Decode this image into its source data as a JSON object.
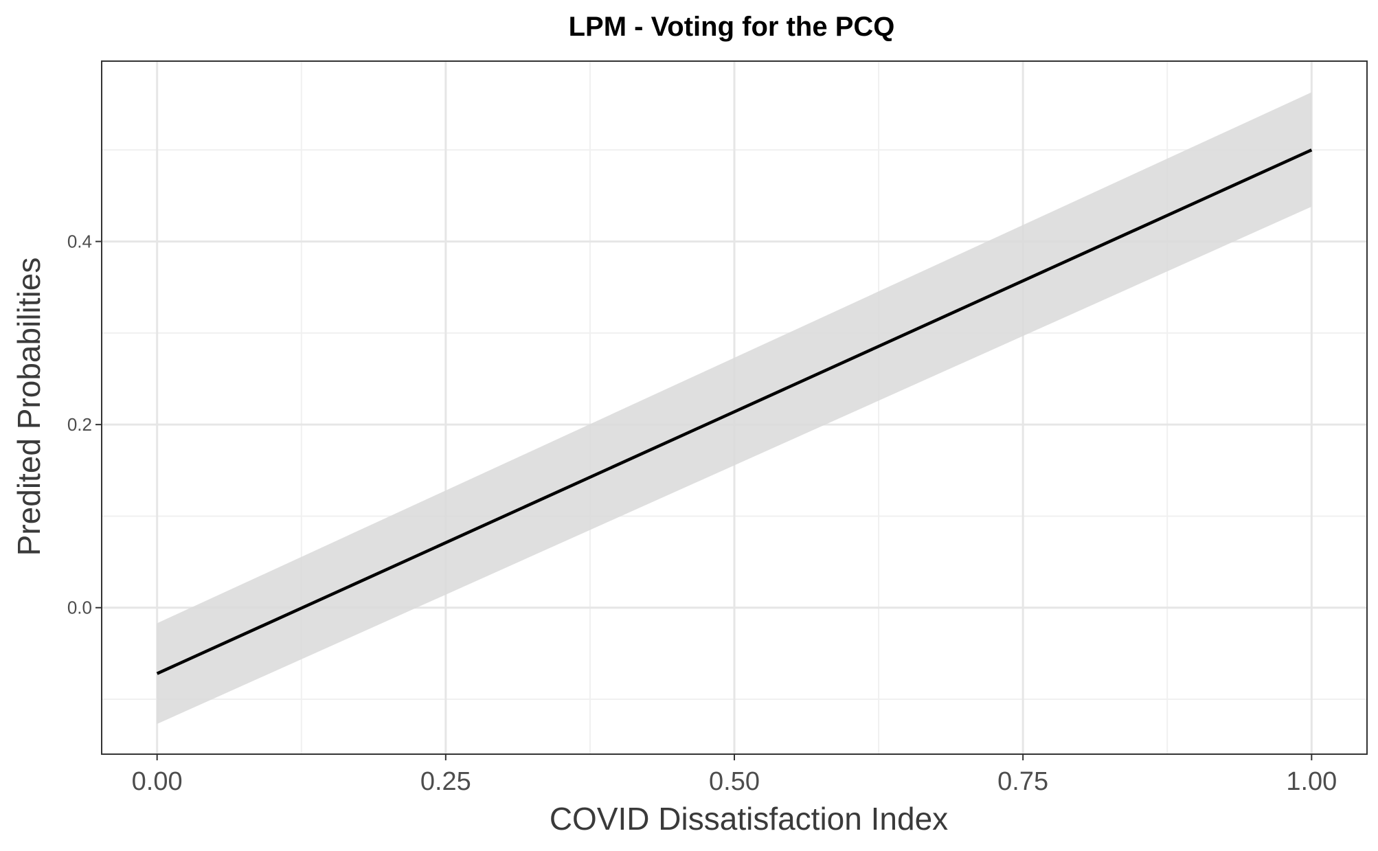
{
  "chart_data": {
    "type": "line",
    "title": "LPM - Voting for the PCQ",
    "xlabel": "COVID Dissatisfaction Index",
    "ylabel": "Predited Probabilities",
    "xlim": [
      -0.048,
      1.048
    ],
    "ylim": [
      -0.16,
      0.597
    ],
    "x_ticks": [
      0.0,
      0.25,
      0.5,
      0.75,
      1.0
    ],
    "x_tick_labels": [
      "0.00",
      "0.25",
      "0.50",
      "0.75",
      "1.00"
    ],
    "y_ticks": [
      0.0,
      0.2,
      0.4
    ],
    "y_tick_labels": [
      "0.0",
      "0.2",
      "0.4"
    ],
    "x_minor_ticks": [
      0.125,
      0.375,
      0.625,
      0.875
    ],
    "y_minor_ticks": [
      -0.1,
      0.1,
      0.3,
      0.5
    ],
    "grid": true,
    "legend": "none",
    "series": [
      {
        "x": [
          0.0,
          1.0
        ],
        "fit": [
          -0.072,
          0.5
        ],
        "lower": [
          -0.127,
          0.438
        ],
        "upper": [
          -0.017,
          0.563
        ]
      }
    ],
    "colors": {
      "line": "#000000",
      "ribbon": "#d9d9d9",
      "grid_major": "#e6e6e6",
      "grid_minor": "#f0f0f0",
      "panel_border": "#333333"
    }
  }
}
